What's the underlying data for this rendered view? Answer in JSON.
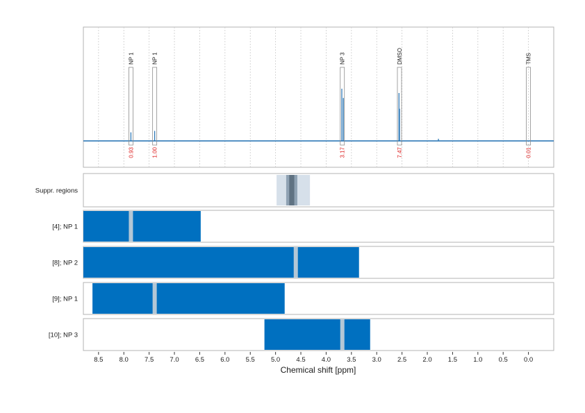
{
  "chart_data": {
    "type": "nmr-spectrum-with-region-bars",
    "xlabel": "Chemical shift [ppm]",
    "x_reversed": true,
    "xlim": [
      8.8,
      -0.5
    ],
    "x_ticks": [
      "8.5",
      "8.0",
      "7.5",
      "7.0",
      "6.5",
      "6.0",
      "5.5",
      "5.0",
      "4.5",
      "4.0",
      "3.5",
      "3.0",
      "2.5",
      "2.0",
      "1.5",
      "1.0",
      "0.5",
      "0.0"
    ],
    "grid": true,
    "spectrum": {
      "peaks": [
        {
          "ppm": 7.86,
          "height": 0.12
        },
        {
          "ppm": 7.39,
          "height": 0.14
        },
        {
          "ppm": 3.69,
          "height": 0.73
        },
        {
          "ppm": 3.66,
          "height": 0.6
        },
        {
          "ppm": 2.56,
          "height": 0.67
        },
        {
          "ppm": 2.55,
          "height": 0.45
        },
        {
          "ppm": 1.78,
          "height": 0.03
        },
        {
          "ppm": 0.0,
          "height": 0.004
        }
      ],
      "annotations": [
        {
          "label": "NP 1",
          "ppm": 7.86,
          "value": "0.93"
        },
        {
          "label": "NP 1",
          "ppm": 7.39,
          "value": "1.00"
        },
        {
          "label": "NP 3",
          "ppm": 3.68,
          "value": "3.17"
        },
        {
          "label": "DMSO",
          "ppm": 2.55,
          "value": "7.47"
        },
        {
          "label": "TMS",
          "ppm": 0.0,
          "value": "0.01"
        }
      ]
    },
    "suppression_panel": {
      "label": "Suppr. regions",
      "outer": [
        4.98,
        4.32
      ],
      "mid": [
        4.79,
        4.57
      ],
      "core": [
        4.73,
        4.63
      ]
    },
    "tracks": [
      {
        "label": "[4]; NP 1",
        "from": 8.8,
        "to": 6.48,
        "gap": 7.86
      },
      {
        "label": "[8]; NP 2",
        "from": 8.8,
        "to": 3.35,
        "gap": 4.6
      },
      {
        "label": "[9]; NP 1",
        "from": 8.62,
        "to": 4.82,
        "gap": 7.39
      },
      {
        "label": "[10]; NP 3",
        "from": 5.22,
        "to": 3.13,
        "gap": 3.68
      }
    ],
    "colors": {
      "spectrum": "#1f6fb2",
      "track": "#0070c0",
      "gap": "#b3c7d6",
      "region_outer": "#d6e0ea",
      "region_mid": "#8fa2b3",
      "region_core": "#5f7282",
      "integral": "#dd1f1f",
      "grid": "#cccccc",
      "frame": "#b3b3b3"
    }
  }
}
